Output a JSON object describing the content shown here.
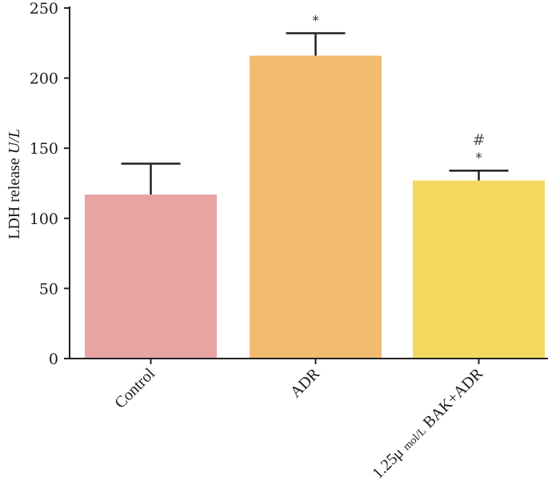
{
  "chart_data": {
    "type": "bar",
    "title": "",
    "xlabel": "",
    "ylabel": "LDH release U/L",
    "ylabel_parts": [
      "LDH release ",
      "U/L"
    ],
    "ylim": [
      0,
      250
    ],
    "yticks": [
      "0",
      "50",
      "100",
      "150",
      "200",
      "250"
    ],
    "ytick_values": [
      0,
      50,
      100,
      150,
      200,
      250
    ],
    "categories": [
      "Control",
      "ADR",
      "1.25μ mol/L BAK+ADR"
    ],
    "category_label_parts": [
      [
        {
          "t": "Control",
          "small": false
        }
      ],
      [
        {
          "t": "ADR",
          "small": false
        }
      ],
      [
        {
          "t": "1.25μ ",
          "small": false
        },
        {
          "t": "mol/L",
          "small": true
        },
        {
          "t": " BAK+ADR",
          "small": false
        }
      ]
    ],
    "values": [
      117,
      216,
      127
    ],
    "errors": [
      22,
      16,
      7
    ],
    "colors": [
      "#e8a4a3",
      "#f2bb6f",
      "#f3da5f"
    ],
    "annotations": [
      {
        "category": 1,
        "lines": [
          "*"
        ]
      },
      {
        "category": 2,
        "lines": [
          "#",
          "*"
        ]
      }
    ],
    "grid": false,
    "legend": "none"
  }
}
